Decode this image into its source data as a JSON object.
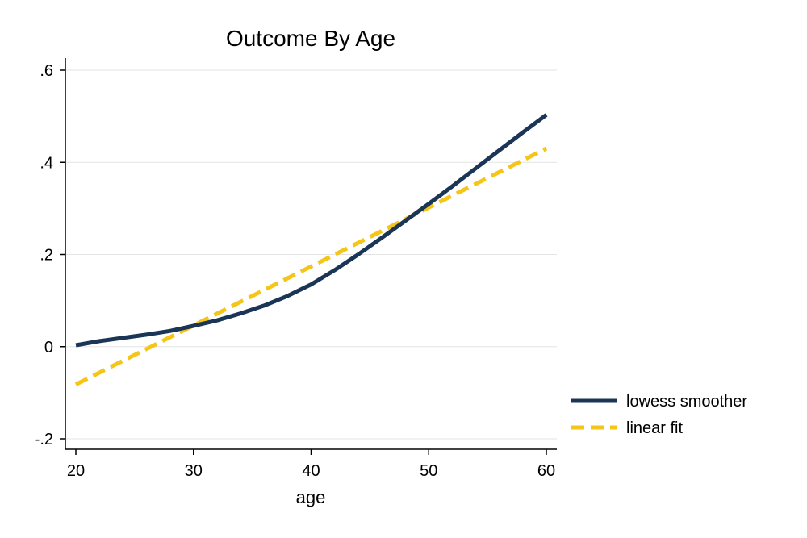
{
  "chart_data": {
    "type": "line",
    "title": "Outcome By Age",
    "xlabel": "age",
    "ylabel": "",
    "xlim": [
      20,
      60
    ],
    "ylim": [
      -0.2,
      0.6
    ],
    "xticks": [
      20,
      30,
      40,
      50,
      60
    ],
    "xtick_labels": [
      "20",
      "30",
      "40",
      "50",
      "60"
    ],
    "yticks": [
      -0.2,
      0,
      0.2,
      0.4,
      0.6
    ],
    "ytick_labels": [
      "-.2",
      "0",
      ".2",
      ".4",
      ".6"
    ],
    "grid": "horizontal",
    "legend_position": "right",
    "series": [
      {
        "name": "lowess smoother",
        "color": "#1a3556",
        "style": "solid",
        "x": [
          20,
          22,
          24,
          26,
          28,
          30,
          32,
          34,
          36,
          38,
          40,
          42,
          44,
          46,
          48,
          50,
          52,
          54,
          56,
          58,
          60
        ],
        "y": [
          0.003,
          0.012,
          0.019,
          0.026,
          0.034,
          0.045,
          0.057,
          0.072,
          0.089,
          0.11,
          0.135,
          0.166,
          0.2,
          0.236,
          0.273,
          0.31,
          0.348,
          0.387,
          0.426,
          0.465,
          0.503
        ]
      },
      {
        "name": "linear fit",
        "color": "#f5c518",
        "style": "dashed",
        "x": [
          20,
          60
        ],
        "y": [
          -0.082,
          0.43
        ]
      }
    ]
  }
}
